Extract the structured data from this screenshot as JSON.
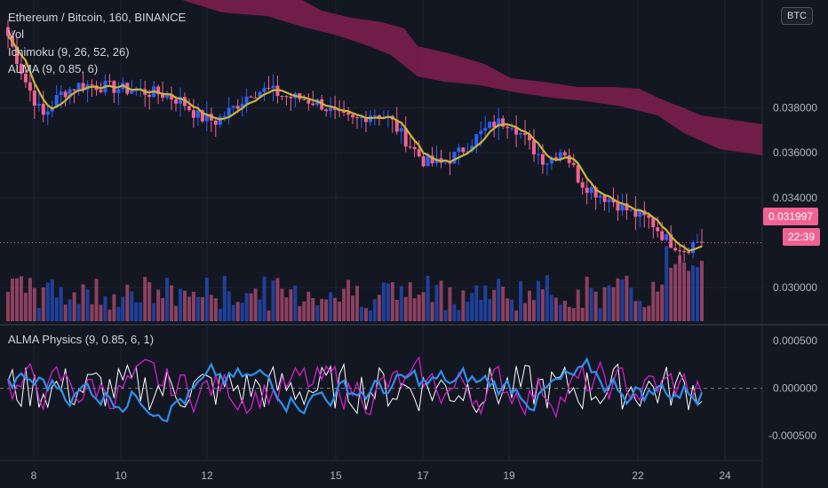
{
  "legend": {
    "symbol": "Ethereum / Bitcoin, 160, BINANCE",
    "vol": "Vol",
    "ichimoku": "Ichimoku (9, 26, 52, 26)",
    "alma": "ALMA (9, 0.85, 6)",
    "physics": "ALMA Physics (9, 0.85, 6, 1)"
  },
  "currency_button": "BTC",
  "last_price": "0.031997",
  "countdown": "22:39",
  "colors": {
    "up": "#2962ff",
    "down": "#f06292",
    "cloud": "#7b1f4e",
    "alma": "#c9b53a",
    "physics_blue": "#2f8fea",
    "physics_magenta": "#d020c8",
    "physics_white": "#ffffff"
  },
  "chart_data": [
    {
      "type": "candlestick",
      "title": "Ethereum / Bitcoin, 160, BINANCE",
      "ylim": [
        0.0285,
        0.0428
      ],
      "y_ticks": [
        "0.030000",
        "0.034000",
        "0.036000",
        "0.038000"
      ],
      "x_ticks": [
        "8",
        "10",
        "12",
        "15",
        "17",
        "19",
        "22",
        "24"
      ],
      "close_approx": [
        0.0412,
        0.0392,
        0.0376,
        0.0386,
        0.039,
        0.039,
        0.0389,
        0.0388,
        0.0387,
        0.0386,
        0.0383,
        0.0376,
        0.0374,
        0.038,
        0.0387,
        0.0388,
        0.0385,
        0.0384,
        0.0382,
        0.0376,
        0.0374,
        0.0378,
        0.0375,
        0.0365,
        0.0356,
        0.0355,
        0.036,
        0.0367,
        0.0373,
        0.0374,
        0.0364,
        0.0356,
        0.0362,
        0.0347,
        0.0342,
        0.0338,
        0.0333,
        0.033,
        0.0321,
        0.0317,
        0.0322
      ],
      "last_price": 0.031997
    },
    {
      "type": "bar",
      "title": "Vol"
    },
    {
      "type": "line",
      "title": "ALMA Physics (9, 0.85, 6, 1)",
      "ylim": [
        -0.00075,
        0.00065
      ],
      "y_ticks": [
        "0.000500",
        "0.000000",
        "-0.000500"
      ]
    }
  ]
}
